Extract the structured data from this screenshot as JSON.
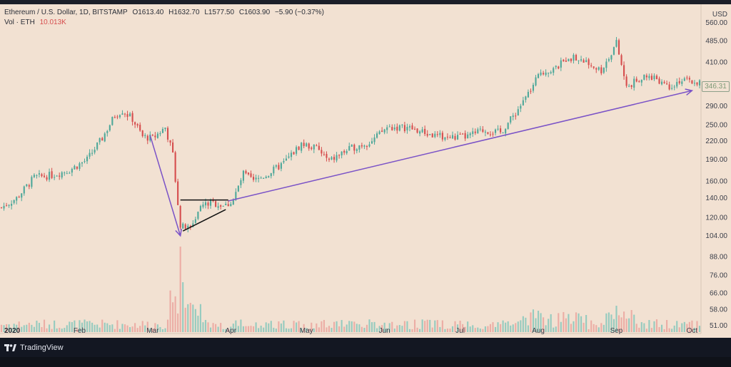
{
  "header": {
    "title": "Ethereum / U.S. Dollar, 1D, BITSTAMP",
    "open": "O1613.40",
    "high": "H1632.70",
    "low": "L1577.50",
    "close": "C1603.90",
    "change": "−5.90 (−0.37%)",
    "vol_label": "Vol · ETH",
    "vol_value": "10.013K"
  },
  "axis": {
    "currency": "USD",
    "y_ticks": [
      "560.00",
      "485.00",
      "410.00",
      "346.31",
      "290.00",
      "250.00",
      "220.00",
      "190.00",
      "160.00",
      "140.00",
      "120.00",
      "104.00",
      "88.00",
      "76.00",
      "66.00",
      "58.00",
      "51.00"
    ],
    "x_ticks": [
      "2020",
      "Feb",
      "Mar",
      "Apr",
      "May",
      "Jun",
      "Jul",
      "Aug",
      "Sep",
      "Oct"
    ]
  },
  "last_price": "346.31",
  "footer": {
    "brand": "TradingView"
  },
  "colors": {
    "up": "#4ea89a",
    "down": "#d64e4e",
    "arrow": "#7a52c7",
    "background": "#f2e1d2"
  },
  "chart_data": {
    "type": "candlestick",
    "scale": "log",
    "ylim": [
      48,
      600
    ],
    "x_range": [
      "2020-01-01",
      "2020-10-04"
    ],
    "annotations": [
      {
        "type": "arrow",
        "from": {
          "date": "2020-02-29",
          "price": 230
        },
        "to": {
          "date": "2020-03-12",
          "price": 104
        }
      },
      {
        "type": "arrow",
        "from": {
          "date": "2020-03-31",
          "price": 137
        },
        "to": {
          "date": "2020-10-01",
          "price": 328
        }
      },
      {
        "type": "trendline",
        "from": {
          "date": "2020-03-12",
          "price": 138
        },
        "to": {
          "date": "2020-03-31",
          "price": 138
        }
      },
      {
        "type": "trendline",
        "from": {
          "date": "2020-03-13",
          "price": 108
        },
        "to": {
          "date": "2020-03-30",
          "price": 128
        }
      }
    ],
    "price_anchors": [
      [
        "2020-01-01",
        130
      ],
      [
        "2020-01-07",
        140
      ],
      [
        "2020-01-14",
        165
      ],
      [
        "2020-01-21",
        168
      ],
      [
        "2020-01-28",
        175
      ],
      [
        "2020-02-04",
        190
      ],
      [
        "2020-02-10",
        225
      ],
      [
        "2020-02-15",
        270
      ],
      [
        "2020-02-18",
        280
      ],
      [
        "2020-02-22",
        262
      ],
      [
        "2020-02-26",
        228
      ],
      [
        "2020-03-01",
        225
      ],
      [
        "2020-03-06",
        245
      ],
      [
        "2020-03-09",
        198
      ],
      [
        "2020-03-12",
        112
      ],
      [
        "2020-03-16",
        110
      ],
      [
        "2020-03-20",
        132
      ],
      [
        "2020-03-24",
        135
      ],
      [
        "2020-03-30",
        132
      ],
      [
        "2020-04-02",
        138
      ],
      [
        "2020-04-06",
        170
      ],
      [
        "2020-04-10",
        160
      ],
      [
        "2020-04-16",
        170
      ],
      [
        "2020-04-22",
        185
      ],
      [
        "2020-04-29",
        215
      ],
      [
        "2020-05-05",
        208
      ],
      [
        "2020-05-10",
        187
      ],
      [
        "2020-05-15",
        200
      ],
      [
        "2020-05-20",
        210
      ],
      [
        "2020-05-27",
        220
      ],
      [
        "2020-06-02",
        245
      ],
      [
        "2020-06-10",
        245
      ],
      [
        "2020-06-20",
        230
      ],
      [
        "2020-06-27",
        226
      ],
      [
        "2020-07-04",
        228
      ],
      [
        "2020-07-10",
        240
      ],
      [
        "2020-07-17",
        235
      ],
      [
        "2020-07-23",
        275
      ],
      [
        "2020-07-29",
        330
      ],
      [
        "2020-08-02",
        380
      ],
      [
        "2020-08-08",
        390
      ],
      [
        "2020-08-13",
        430
      ],
      [
        "2020-08-20",
        410
      ],
      [
        "2020-08-26",
        385
      ],
      [
        "2020-09-01",
        478
      ],
      [
        "2020-09-05",
        335
      ],
      [
        "2020-09-10",
        360
      ],
      [
        "2020-09-16",
        365
      ],
      [
        "2020-09-22",
        340
      ],
      [
        "2020-09-26",
        355
      ],
      [
        "2020-10-04",
        350
      ]
    ],
    "volume_scale": "relative",
    "volume_note": "volume bars at bottom, spike on 2020-03-12"
  }
}
